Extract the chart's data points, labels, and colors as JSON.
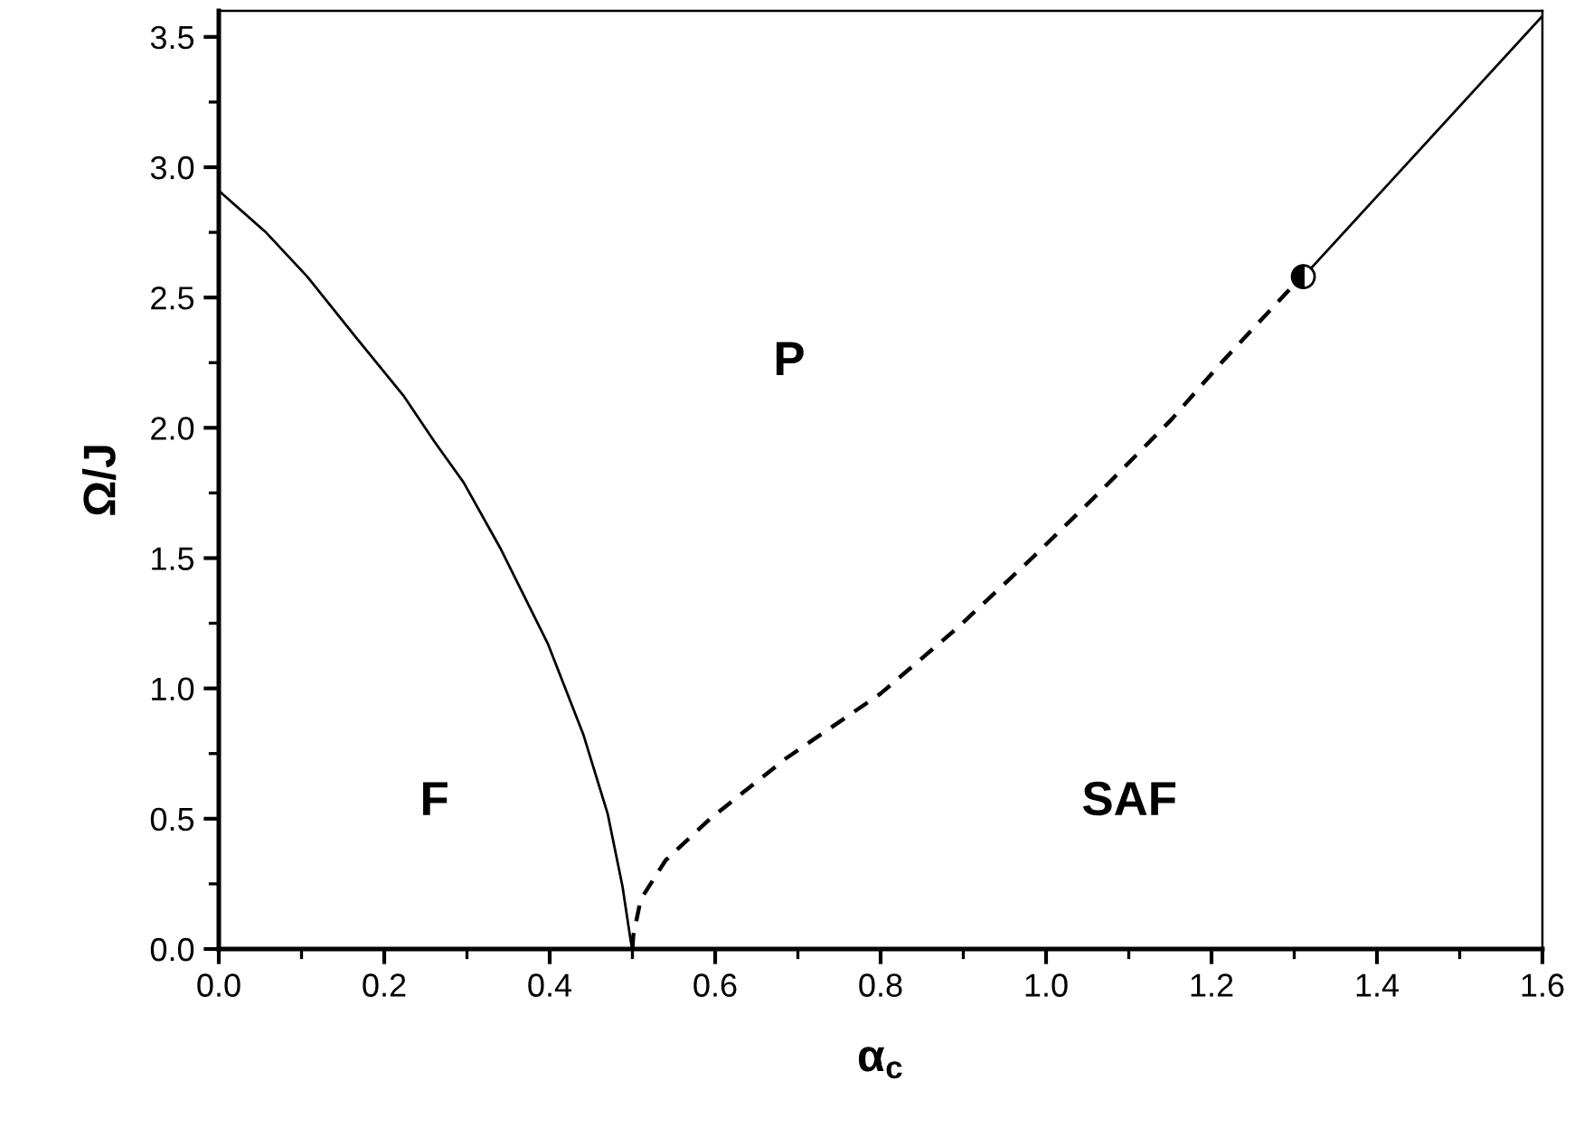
{
  "chart_data": {
    "type": "line",
    "xlabel": "α$_{c}$",
    "ylabel": "Ω/J",
    "xlim": [
      0,
      1.6
    ],
    "xticks": [
      {
        "value": 0,
        "label": "0.0"
      },
      0.2,
      0.4,
      0.6,
      0.8,
      {
        "value": 1,
        "label": "1.0"
      },
      1.2,
      1.4,
      1.6
    ],
    "ylim": [
      0,
      3.6
    ],
    "yticks": [
      {
        "value": 0,
        "label": "0.0"
      },
      0.5,
      {
        "value": 1,
        "label": "1.0"
      },
      1.5,
      {
        "value": 2,
        "label": "2.0"
      },
      2.5,
      {
        "value": 3,
        "label": "3.0"
      },
      3.5
    ],
    "grid": false,
    "legend": false,
    "series": [
      {
        "color": "#000000",
        "line_style": "solid",
        "x": [
          0,
          0.057,
          0.107,
          0.165,
          0.224,
          0.26,
          0.296,
          0.34,
          0.398,
          0.441,
          0.47,
          0.488,
          0.498,
          0.5
        ],
        "values": [
          2.91,
          2.75,
          2.58,
          2.35,
          2.12,
          1.95,
          1.79,
          1.54,
          1.17,
          0.82,
          0.52,
          0.24,
          0.03,
          0
        ]
      },
      {
        "color": "#000000",
        "line_style": "dashed",
        "x": [
          0.5,
          0.501,
          0.51,
          0.54,
          0.594,
          0.685,
          0.8,
          0.892,
          0.983,
          1.067,
          1.151,
          1.212,
          1.3,
          1.311
        ],
        "values": [
          0,
          0.05,
          0.19,
          0.34,
          0.5,
          0.73,
          0.98,
          1.23,
          1.5,
          1.76,
          2.03,
          2.25,
          2.55,
          2.58
        ]
      },
      {
        "color": "#000000",
        "line_style": "solid",
        "x": [
          1.311,
          1.6
        ],
        "values": [
          2.58,
          3.58
        ]
      },
      {
        "type": "scatter",
        "color": "#000000",
        "marker": "circle",
        "x": [
          1.311
        ],
        "values": [
          2.58
        ]
      }
    ],
    "annotations": [
      "P",
      "F",
      "SAF"
    ]
  }
}
